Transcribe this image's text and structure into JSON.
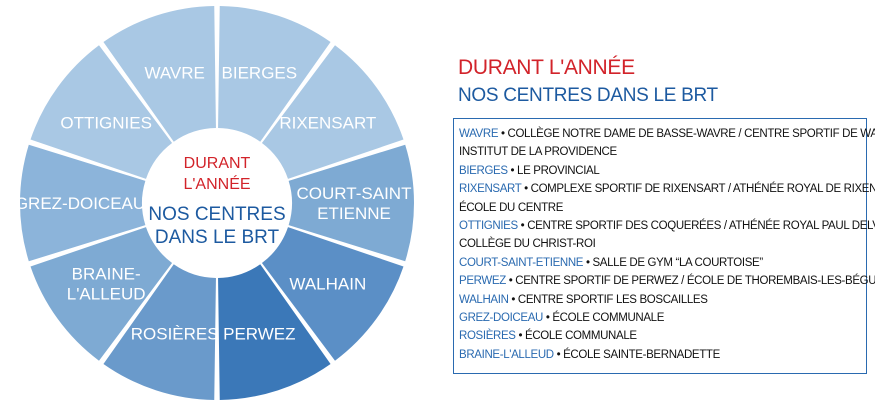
{
  "colors": {
    "accent_red": "#d2232a",
    "accent_blue": "#1d5aa0",
    "segment_light": "#a9c8e4",
    "segment_mid": "#7eaad3",
    "segment_dark": "#3b78b8"
  },
  "wheel": {
    "center_line1": "DURANT",
    "center_line2": "L'ANNÉE",
    "center_line3": "NOS CENTRES",
    "center_line4": "DANS LE BRT",
    "segments": [
      {
        "label": [
          "BIERGES"
        ],
        "color": "#a9c8e4"
      },
      {
        "label": [
          "RIXENSART"
        ],
        "color": "#a9c8e4"
      },
      {
        "label": [
          "COURT-SAINT",
          "ETIENNE"
        ],
        "color": "#7eaad3"
      },
      {
        "label": [
          "WALHAIN"
        ],
        "color": "#5b8fc6"
      },
      {
        "label": [
          "PERWEZ"
        ],
        "color": "#3b78b8"
      },
      {
        "label": [
          "ROSIÈRES"
        ],
        "color": "#6a9acb"
      },
      {
        "label": [
          "BRAINE-",
          "L'ALLEUD"
        ],
        "color": "#7eaad3"
      },
      {
        "label": [
          "GREZ-DOICEAU"
        ],
        "color": "#8cb4da"
      },
      {
        "label": [
          "OTTIGNIES"
        ],
        "color": "#a9c8e4"
      },
      {
        "label": [
          "WAVRE"
        ],
        "color": "#a9c8e4"
      }
    ]
  },
  "heading": {
    "line1": "DURANT L'ANNÉE",
    "line2": "NOS CENTRES DANS LE BRT"
  },
  "list": [
    [
      "WAVRE",
      " • COLLÈGE NOTRE DAME DE BASSE-WAVRE / CENTRE SPORTIF DE WAVRE /"
    ],
    [
      "",
      "INSTITUT DE LA PROVIDENCE"
    ],
    [
      "BIERGES",
      " • LE PROVINCIAL"
    ],
    [
      "RIXENSART",
      " • COMPLEXE SPORTIF DE RIXENSART / ATHÉNÉE ROYAL DE RIXENSART /"
    ],
    [
      "",
      "ÉCOLE DU CENTRE"
    ],
    [
      "OTTIGNIES",
      " • CENTRE SPORTIF DES COQUERÉES / ATHÉNÉE ROYAL PAUL DELVAUX /"
    ],
    [
      "",
      "COLLÈGE DU CHRIST-ROI"
    ],
    [
      "COURT-SAINT-ETIENNE",
      " • SALLE DE GYM “LA COURTOISE”"
    ],
    [
      "PERWEZ",
      " • CENTRE SPORTIF DE PERWEZ / ÉCOLE DE THOREMBAIS-LES-BÉGUINES"
    ],
    [
      "WALHAIN",
      " • CENTRE SPORTIF LES BOSCAILLES"
    ],
    [
      "GREZ-DOICEAU",
      " • ÉCOLE COMMUNALE"
    ],
    [
      "ROSIÈRES",
      " • ÉCOLE COMMUNALE"
    ],
    [
      "BRAINE-L'ALLEUD",
      " • ÉCOLE SAINTE-BERNADETTE"
    ]
  ]
}
